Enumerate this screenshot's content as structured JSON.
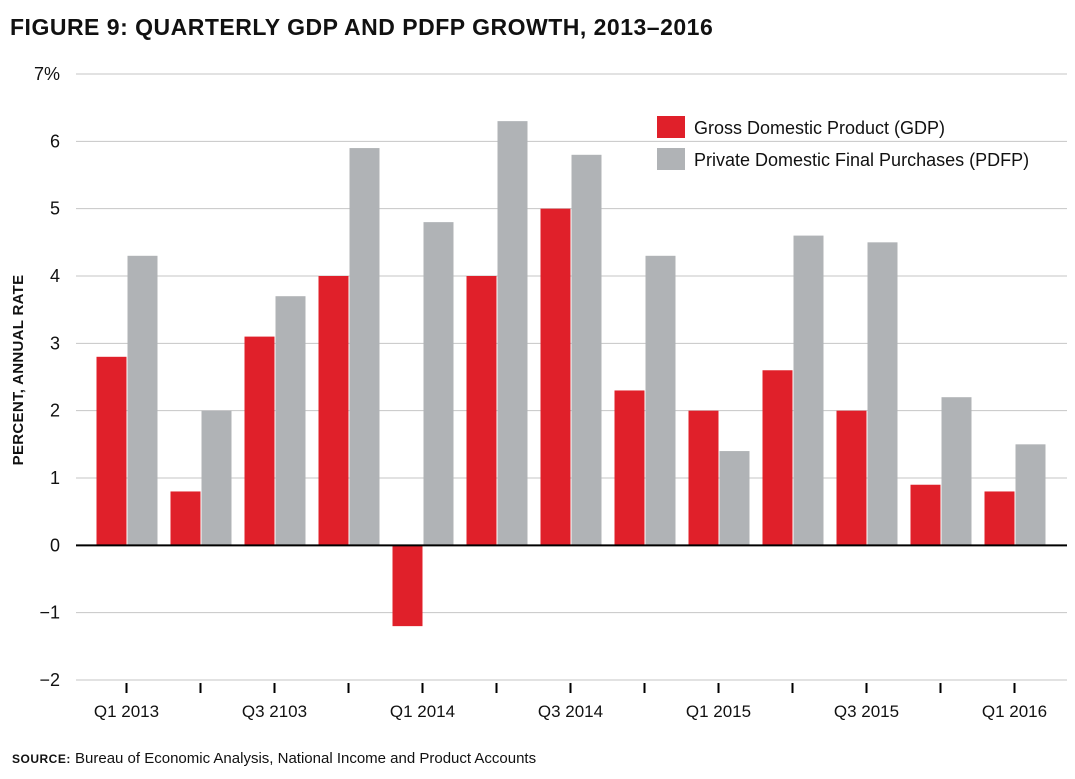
{
  "chart_data": {
    "type": "bar",
    "title": "FIGURE 9: QUARTERLY GDP AND PDFP GROWTH, 2013–2016",
    "ylabel": "PERCENT, ANNUAL RATE",
    "xlabel": "",
    "ylim": [
      -2,
      7
    ],
    "yticks": [
      -2,
      -1,
      0,
      1,
      2,
      3,
      4,
      5,
      6,
      7
    ],
    "ytick_labels": [
      "−2",
      "−1",
      "0",
      "1",
      "2",
      "3",
      "4",
      "5",
      "6",
      "7%"
    ],
    "grid": true,
    "legend_position": "top-right",
    "categories": [
      "Q1 2013",
      "Q2 2013",
      "Q3 2103",
      "Q4 2013",
      "Q1 2014",
      "Q2 2014",
      "Q3 2014",
      "Q4 2014",
      "Q1 2015",
      "Q2 2015",
      "Q3 2015",
      "Q4 2015",
      "Q1 2016"
    ],
    "category_labels": [
      "Q1 2013",
      "",
      "Q3 2103",
      "",
      "Q1 2014",
      "",
      "Q3 2014",
      "",
      "Q1 2015",
      "",
      "Q3 2015",
      "",
      "Q1 2016"
    ],
    "series": [
      {
        "name": "Gross Domestic Product (GDP)",
        "color": "#e0202a",
        "values": [
          2.8,
          0.8,
          3.1,
          4.0,
          -1.2,
          4.0,
          5.0,
          2.3,
          2.0,
          2.6,
          2.0,
          0.9,
          0.8
        ]
      },
      {
        "name": "Private Domestic Final Purchases (PDFP)",
        "color": "#b0b3b6",
        "values": [
          4.3,
          2.0,
          3.7,
          5.9,
          4.8,
          6.3,
          5.8,
          4.3,
          1.4,
          4.6,
          4.5,
          2.2,
          1.5
        ]
      }
    ]
  },
  "source": {
    "label": "Source:",
    "text": "Bureau of Economic Analysis, National Income and Product Accounts"
  }
}
